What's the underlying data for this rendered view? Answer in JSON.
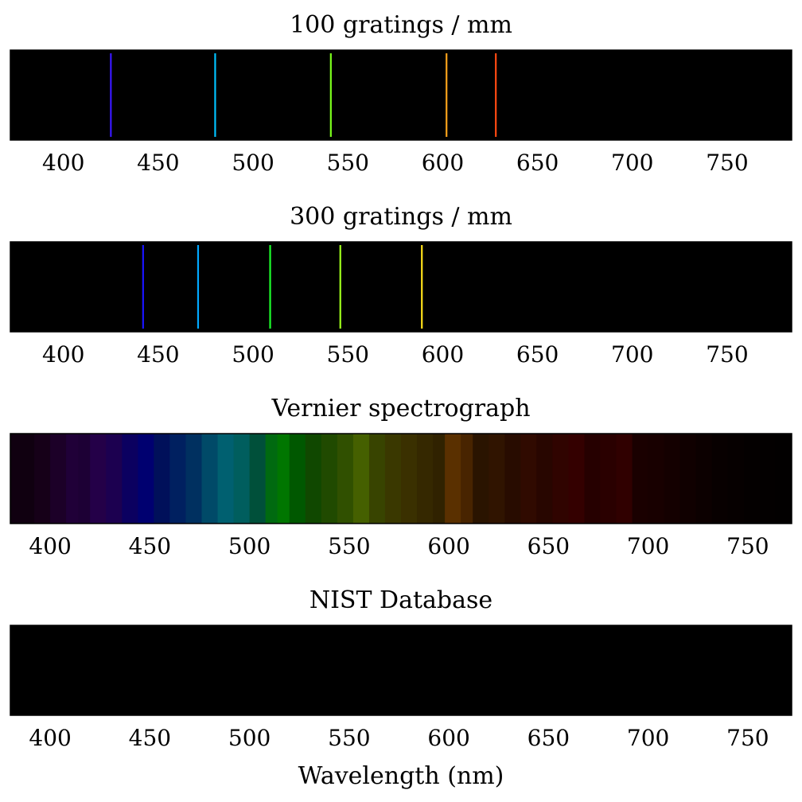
{
  "figure": {
    "xlabel": "Wavelength (nm)"
  },
  "chart_data": [
    {
      "type": "spectrum",
      "title": "100 gratings / mm",
      "xlim": [
        372,
        784
      ],
      "xticks": [
        400,
        450,
        500,
        550,
        600,
        650,
        700,
        750
      ],
      "background": "#000000",
      "lines": [
        {
          "x": 425,
          "color": "#3a17ff"
        },
        {
          "x": 480,
          "color": "#00c2ff"
        },
        {
          "x": 541,
          "color": "#7cff1c"
        },
        {
          "x": 602,
          "color": "#ffa21a"
        },
        {
          "x": 628,
          "color": "#ff4a12"
        }
      ]
    },
    {
      "type": "spectrum",
      "title": "300 gratings / mm",
      "xlim": [
        372,
        784
      ],
      "xticks": [
        400,
        450,
        500,
        550,
        600,
        650,
        700,
        750
      ],
      "background": "#000000",
      "lines": [
        {
          "x": 442,
          "color": "#1a14ff"
        },
        {
          "x": 471,
          "color": "#00a8ff"
        },
        {
          "x": 509,
          "color": "#1cff2c"
        },
        {
          "x": 546,
          "color": "#a0ff1c"
        },
        {
          "x": 589,
          "color": "#ffe01a"
        }
      ]
    },
    {
      "type": "spectrum",
      "title": "Vernier spectrograph",
      "xlim": [
        380,
        772
      ],
      "xticks": [
        400,
        450,
        500,
        550,
        600,
        650,
        700,
        750
      ],
      "background": "#000000",
      "bands": [
        {
          "x": 380,
          "color": "#100010"
        },
        {
          "x": 392,
          "color": "#160018"
        },
        {
          "x": 400,
          "color": "#1c0028"
        },
        {
          "x": 408,
          "color": "#200038"
        },
        {
          "x": 414,
          "color": "#1d0035"
        },
        {
          "x": 420,
          "color": "#240048"
        },
        {
          "x": 428,
          "color": "#1c0050"
        },
        {
          "x": 436,
          "color": "#0b0060"
        },
        {
          "x": 444,
          "color": "#000070"
        },
        {
          "x": 452,
          "color": "#00105a"
        },
        {
          "x": 460,
          "color": "#002060"
        },
        {
          "x": 468,
          "color": "#003060"
        },
        {
          "x": 476,
          "color": "#004a68"
        },
        {
          "x": 484,
          "color": "#006070"
        },
        {
          "x": 492,
          "color": "#005e5e"
        },
        {
          "x": 500,
          "color": "#00503a"
        },
        {
          "x": 508,
          "color": "#006a10"
        },
        {
          "x": 514,
          "color": "#007600"
        },
        {
          "x": 520,
          "color": "#005800"
        },
        {
          "x": 528,
          "color": "#104800"
        },
        {
          "x": 536,
          "color": "#204a00"
        },
        {
          "x": 544,
          "color": "#305000"
        },
        {
          "x": 552,
          "color": "#456000"
        },
        {
          "x": 560,
          "color": "#384400"
        },
        {
          "x": 568,
          "color": "#3a3800"
        },
        {
          "x": 576,
          "color": "#3a3000"
        },
        {
          "x": 584,
          "color": "#352800"
        },
        {
          "x": 592,
          "color": "#302200"
        },
        {
          "x": 598,
          "color": "#5a3000"
        },
        {
          "x": 606,
          "color": "#482400"
        },
        {
          "x": 612,
          "color": "#2a1400"
        },
        {
          "x": 620,
          "color": "#301400"
        },
        {
          "x": 628,
          "color": "#280c00"
        },
        {
          "x": 636,
          "color": "#300a00"
        },
        {
          "x": 644,
          "color": "#280600"
        },
        {
          "x": 652,
          "color": "#300400"
        },
        {
          "x": 660,
          "color": "#340000"
        },
        {
          "x": 668,
          "color": "#260000"
        },
        {
          "x": 676,
          "color": "#2a0000"
        },
        {
          "x": 684,
          "color": "#300000"
        },
        {
          "x": 692,
          "color": "#1a0000"
        },
        {
          "x": 700,
          "color": "#180000"
        },
        {
          "x": 708,
          "color": "#140000"
        },
        {
          "x": 716,
          "color": "#100000"
        },
        {
          "x": 724,
          "color": "#0c0000"
        },
        {
          "x": 732,
          "color": "#080000"
        },
        {
          "x": 740,
          "color": "#060000"
        },
        {
          "x": 748,
          "color": "#040000"
        },
        {
          "x": 756,
          "color": "#030000"
        },
        {
          "x": 764,
          "color": "#020000"
        }
      ]
    },
    {
      "type": "spectrum",
      "title": "NIST Database",
      "xlim": [
        380,
        772
      ],
      "xticks": [
        400,
        450,
        500,
        550,
        600,
        650,
        700,
        750
      ],
      "background": "#000000",
      "lines": []
    }
  ]
}
